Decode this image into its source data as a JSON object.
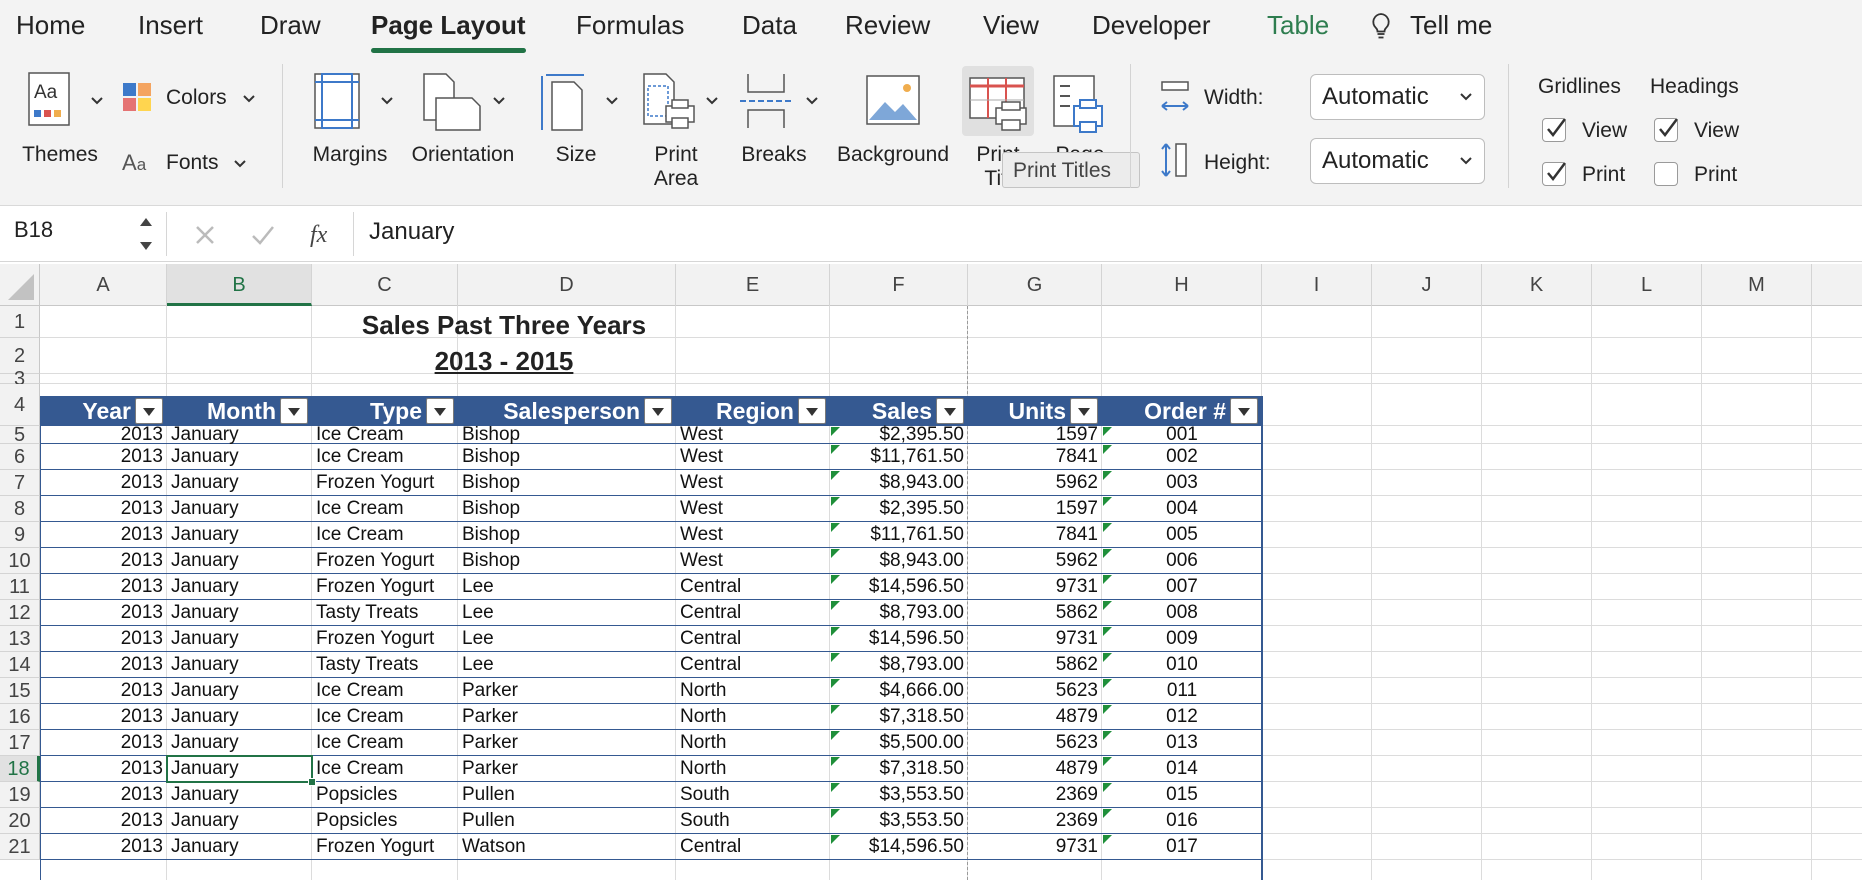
{
  "tabs": [
    "Home",
    "Insert",
    "Draw",
    "Page Layout",
    "Formulas",
    "Data",
    "Review",
    "View",
    "Developer",
    "Table",
    "Tell me"
  ],
  "ribbon": {
    "themes": "Themes",
    "colors": "Colors",
    "fonts": "Fonts",
    "margins": "Margins",
    "orientation": "Orientation",
    "size": "Size",
    "print_area_1": "Print",
    "print_area_2": "Area",
    "breaks": "Breaks",
    "background": "Background",
    "print_titles_1": "Print",
    "print_titles_2": "Titl",
    "page_1": "Page",
    "width_label": "Width:",
    "width_value": "Automatic",
    "height_label": "Height:",
    "height_value": "Automatic",
    "gridlines": "Gridlines",
    "headings": "Headings",
    "view": "View",
    "print": "Print",
    "tooltip": "Print Titles"
  },
  "formula_bar": {
    "name_box": "B18",
    "value": "January"
  },
  "columns": [
    "A",
    "B",
    "C",
    "D",
    "E",
    "F",
    "G",
    "H",
    "I",
    "J",
    "K",
    "L",
    "M"
  ],
  "rows": [
    "1",
    "2",
    "3",
    "4",
    "5",
    "6",
    "7",
    "8",
    "9",
    "10",
    "11",
    "12",
    "13",
    "14",
    "15",
    "16",
    "17",
    "18",
    "19",
    "20",
    "21"
  ],
  "sheet": {
    "title": "Sales Past Three Years",
    "subtitle": "2013 - 2015",
    "headers": [
      "Year",
      "Month",
      "Type",
      "Salesperson",
      "Region",
      "Sales",
      "Units",
      "Order #"
    ],
    "data": [
      [
        "2013",
        "January",
        "Ice Cream",
        "Bishop",
        "West",
        "$2,395.50",
        "1597",
        "001"
      ],
      [
        "2013",
        "January",
        "Ice Cream",
        "Bishop",
        "West",
        "$11,761.50",
        "7841",
        "002"
      ],
      [
        "2013",
        "January",
        "Frozen Yogurt",
        "Bishop",
        "West",
        "$8,943.00",
        "5962",
        "003"
      ],
      [
        "2013",
        "January",
        "Ice Cream",
        "Bishop",
        "West",
        "$2,395.50",
        "1597",
        "004"
      ],
      [
        "2013",
        "January",
        "Ice Cream",
        "Bishop",
        "West",
        "$11,761.50",
        "7841",
        "005"
      ],
      [
        "2013",
        "January",
        "Frozen Yogurt",
        "Bishop",
        "West",
        "$8,943.00",
        "5962",
        "006"
      ],
      [
        "2013",
        "January",
        "Frozen Yogurt",
        "Lee",
        "Central",
        "$14,596.50",
        "9731",
        "007"
      ],
      [
        "2013",
        "January",
        "Tasty Treats",
        "Lee",
        "Central",
        "$8,793.00",
        "5862",
        "008"
      ],
      [
        "2013",
        "January",
        "Frozen Yogurt",
        "Lee",
        "Central",
        "$14,596.50",
        "9731",
        "009"
      ],
      [
        "2013",
        "January",
        "Tasty Treats",
        "Lee",
        "Central",
        "$8,793.00",
        "5862",
        "010"
      ],
      [
        "2013",
        "January",
        "Ice Cream",
        "Parker",
        "North",
        "$4,666.00",
        "5623",
        "011"
      ],
      [
        "2013",
        "January",
        "Ice Cream",
        "Parker",
        "North",
        "$7,318.50",
        "4879",
        "012"
      ],
      [
        "2013",
        "January",
        "Ice Cream",
        "Parker",
        "North",
        "$5,500.00",
        "5623",
        "013"
      ],
      [
        "2013",
        "January",
        "Ice Cream",
        "Parker",
        "North",
        "$7,318.50",
        "4879",
        "014"
      ],
      [
        "2013",
        "January",
        "Popsicles",
        "Pullen",
        "South",
        "$3,553.50",
        "2369",
        "015"
      ],
      [
        "2013",
        "January",
        "Popsicles",
        "Pullen",
        "South",
        "$3,553.50",
        "2369",
        "016"
      ],
      [
        "2013",
        "January",
        "Frozen Yogurt",
        "Watson",
        "Central",
        "$14,596.50",
        "9731",
        "017"
      ]
    ]
  },
  "colors": {
    "accent": "#217346",
    "table_header": "#355991",
    "table_border": "#355991"
  }
}
